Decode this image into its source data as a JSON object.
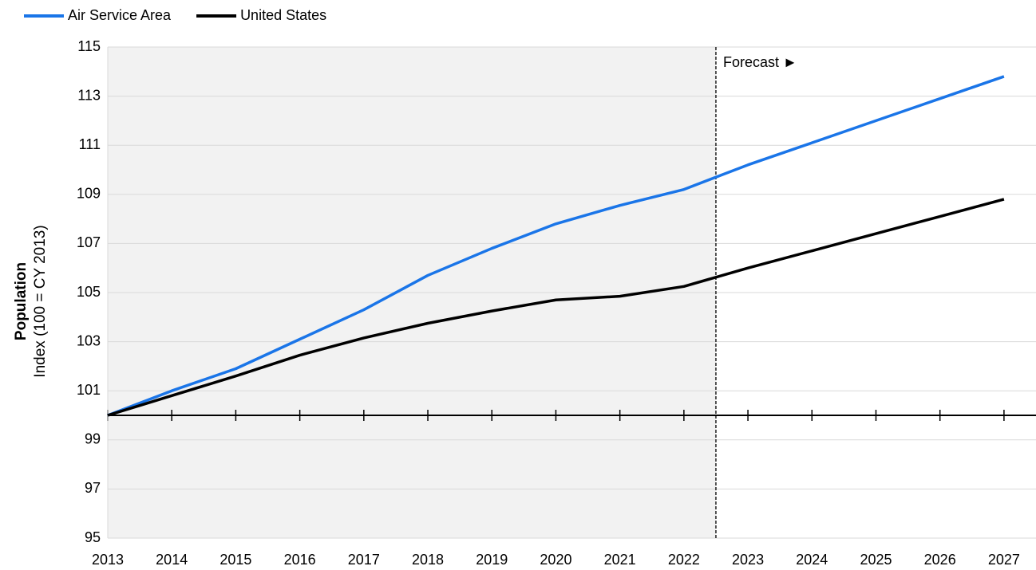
{
  "chart_data": {
    "type": "line",
    "y_label_title": "Population",
    "y_label": "Index (100 = CY 2013)",
    "annotation": "Forecast ►",
    "forecast_start": 2022.5,
    "shade_color": "#f2f2f2",
    "x_axis_at": 100,
    "x": [
      2013,
      2014,
      2015,
      2016,
      2017,
      2018,
      2019,
      2020,
      2021,
      2022,
      2023,
      2024,
      2025,
      2026,
      2027
    ],
    "series": [
      {
        "name": "Air Service Area",
        "color": "#1a75e8",
        "values": [
          100,
          101.0,
          101.9,
          103.1,
          104.3,
          105.7,
          106.8,
          107.8,
          108.55,
          109.2,
          110.2,
          111.1,
          112.0,
          112.9,
          113.8
        ]
      },
      {
        "name": "United States",
        "color": "#000000",
        "values": [
          100,
          100.8,
          101.6,
          102.45,
          103.15,
          103.75,
          104.25,
          104.7,
          104.85,
          105.25,
          106.0,
          106.7,
          107.4,
          108.1,
          108.8
        ]
      }
    ],
    "xlim": [
      2013,
      2027.5
    ],
    "xticks": [
      2013,
      2014,
      2015,
      2016,
      2017,
      2018,
      2019,
      2020,
      2021,
      2022,
      2023,
      2024,
      2025,
      2026,
      2027
    ],
    "ylim": [
      95,
      115
    ],
    "yticks": [
      95,
      97,
      99,
      101,
      103,
      105,
      107,
      109,
      111,
      113,
      115
    ],
    "grid": true,
    "legend": "top-left"
  }
}
